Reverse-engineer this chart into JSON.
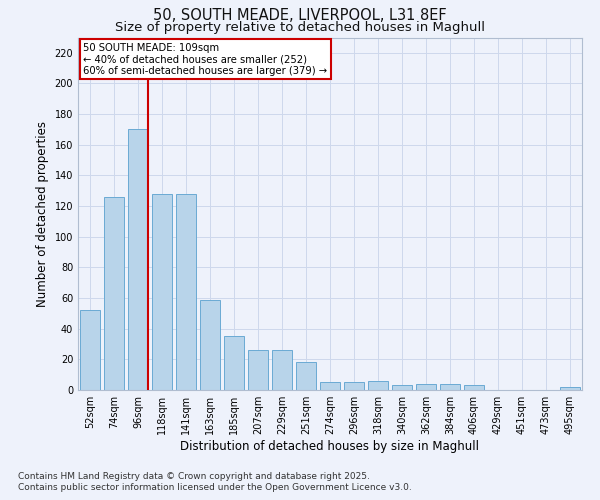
{
  "title1": "50, SOUTH MEADE, LIVERPOOL, L31 8EF",
  "title2": "Size of property relative to detached houses in Maghull",
  "xlabel": "Distribution of detached houses by size in Maghull",
  "ylabel": "Number of detached properties",
  "categories": [
    "52sqm",
    "74sqm",
    "96sqm",
    "118sqm",
    "141sqm",
    "163sqm",
    "185sqm",
    "207sqm",
    "229sqm",
    "251sqm",
    "274sqm",
    "296sqm",
    "318sqm",
    "340sqm",
    "362sqm",
    "384sqm",
    "406sqm",
    "429sqm",
    "451sqm",
    "473sqm",
    "495sqm"
  ],
  "values": [
    52,
    126,
    170,
    128,
    128,
    59,
    35,
    26,
    26,
    18,
    5,
    5,
    6,
    3,
    4,
    4,
    3,
    0,
    0,
    0,
    2
  ],
  "bar_color": "#b8d4ea",
  "bar_edge_color": "#6aaad4",
  "vline_color": "#cc0000",
  "annotation_text": "50 SOUTH MEADE: 109sqm\n← 40% of detached houses are smaller (252)\n60% of semi-detached houses are larger (379) →",
  "annotation_box_color": "#ffffff",
  "annotation_box_edge": "#cc0000",
  "ylim": [
    0,
    230
  ],
  "yticks": [
    0,
    20,
    40,
    60,
    80,
    100,
    120,
    140,
    160,
    180,
    200,
    220
  ],
  "grid_color": "#cdd8ec",
  "bg_color": "#eef2fb",
  "footer1": "Contains HM Land Registry data © Crown copyright and database right 2025.",
  "footer2": "Contains public sector information licensed under the Open Government Licence v3.0.",
  "title_fontsize": 10.5,
  "subtitle_fontsize": 9.5,
  "axis_label_fontsize": 8.5,
  "tick_fontsize": 7,
  "footer_fontsize": 6.5
}
